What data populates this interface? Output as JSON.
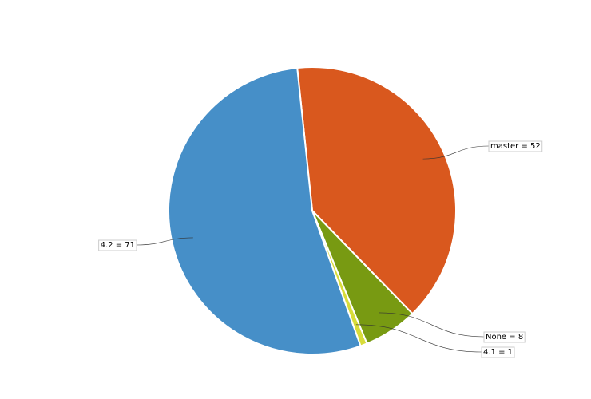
{
  "chart_data": {
    "type": "pie",
    "values": [
      52,
      8,
      1,
      71
    ],
    "value_labels": [
      "master = 52",
      "None = 8",
      "4.1 = 1",
      "4.2 = 71"
    ],
    "colors": [
      "#d9581e",
      "#789a12",
      "#d8dc3a",
      "#468fc8"
    ]
  }
}
